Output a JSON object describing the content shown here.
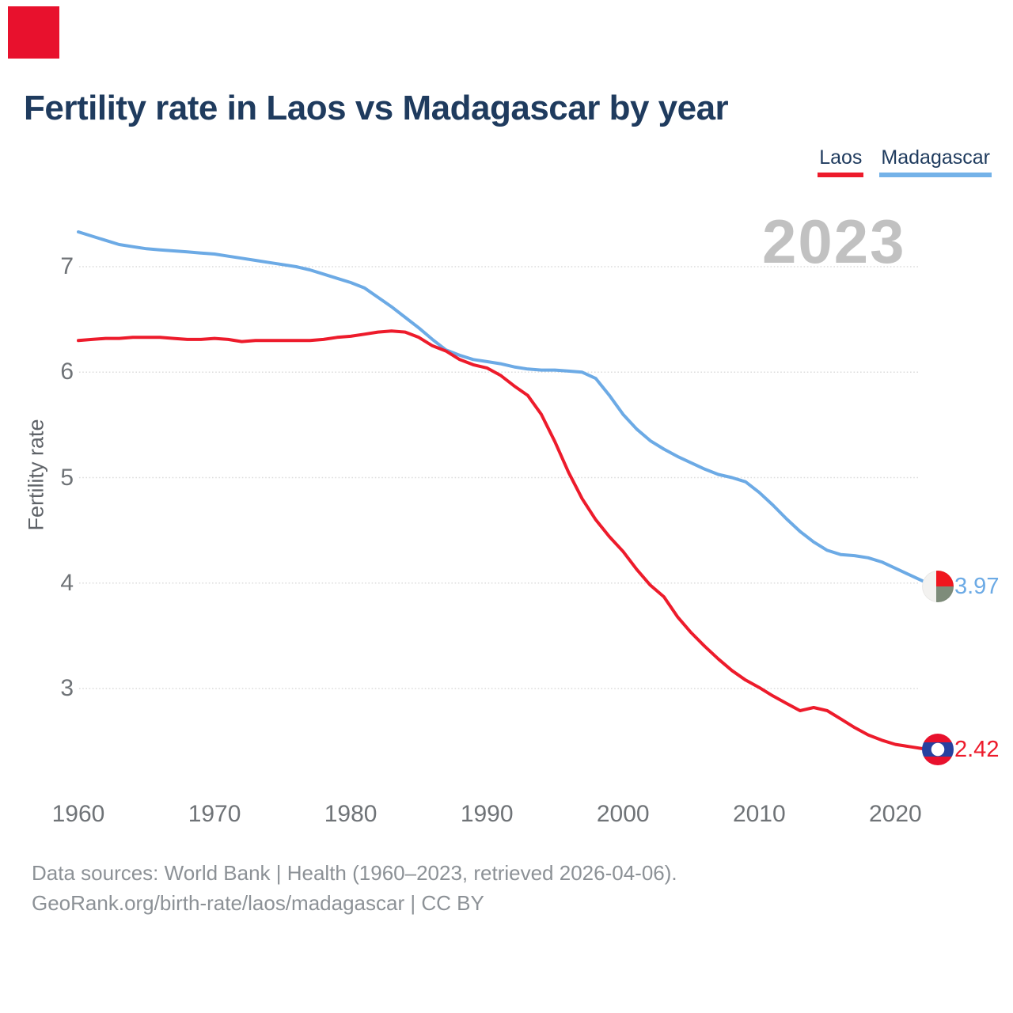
{
  "corner_marker": {
    "color": "#e8112d"
  },
  "title": "Fertility rate in Laos vs Madagascar by year",
  "watermark_year": "2023",
  "legend": {
    "items": [
      {
        "label": "Laos",
        "color": "#ed1b2b"
      },
      {
        "label": "Madagascar",
        "color": "#74b2e8"
      }
    ]
  },
  "footer": {
    "line1": "Data sources: World Bank | Health (1960–2023, retrieved 2026-04-06).",
    "line2": "GeoRank.org/birth-rate/laos/madagascar | CC BY"
  },
  "chart_data": {
    "type": "line",
    "title": "Fertility rate in Laos vs Madagascar by year",
    "xlabel": "",
    "ylabel": "Fertility rate",
    "xlim": [
      1960,
      2023
    ],
    "ylim": [
      2.2,
      7.5
    ],
    "x_ticks": [
      1960,
      1970,
      1980,
      1990,
      2000,
      2010,
      2020
    ],
    "y_ticks": [
      3,
      4,
      5,
      6,
      7
    ],
    "grid": "horizontal-dotted",
    "legend_position": "top-right",
    "x_step": 1,
    "x_start": 1960,
    "series": [
      {
        "name": "Madagascar",
        "color": "#6caae5",
        "icon": "madagascar-flag",
        "end_label": "3.97",
        "values": [
          7.33,
          7.29,
          7.25,
          7.21,
          7.19,
          7.17,
          7.16,
          7.15,
          7.14,
          7.13,
          7.12,
          7.1,
          7.08,
          7.06,
          7.04,
          7.02,
          7.0,
          6.97,
          6.93,
          6.89,
          6.85,
          6.8,
          6.71,
          6.62,
          6.52,
          6.42,
          6.31,
          6.21,
          6.16,
          6.12,
          6.1,
          6.08,
          6.05,
          6.03,
          6.02,
          6.02,
          6.01,
          6.0,
          5.94,
          5.78,
          5.6,
          5.46,
          5.35,
          5.27,
          5.2,
          5.14,
          5.08,
          5.03,
          5.0,
          4.96,
          4.86,
          4.74,
          4.61,
          4.49,
          4.39,
          4.31,
          4.27,
          4.26,
          4.24,
          4.2,
          4.14,
          4.08,
          4.02,
          3.97
        ]
      },
      {
        "name": "Laos",
        "color": "#ed1b2b",
        "icon": "laos-flag",
        "end_label": "2.42",
        "values": [
          6.3,
          6.31,
          6.32,
          6.32,
          6.33,
          6.33,
          6.33,
          6.32,
          6.31,
          6.31,
          6.32,
          6.31,
          6.29,
          6.3,
          6.3,
          6.3,
          6.3,
          6.3,
          6.31,
          6.33,
          6.34,
          6.36,
          6.38,
          6.39,
          6.38,
          6.33,
          6.25,
          6.2,
          6.12,
          6.07,
          6.04,
          5.97,
          5.87,
          5.78,
          5.6,
          5.34,
          5.05,
          4.8,
          4.6,
          4.44,
          4.3,
          4.13,
          3.98,
          3.87,
          3.68,
          3.53,
          3.4,
          3.28,
          3.17,
          3.08,
          3.01,
          2.93,
          2.86,
          2.79,
          2.82,
          2.79,
          2.71,
          2.63,
          2.56,
          2.51,
          2.47,
          2.45,
          2.43,
          2.42
        ]
      }
    ]
  }
}
